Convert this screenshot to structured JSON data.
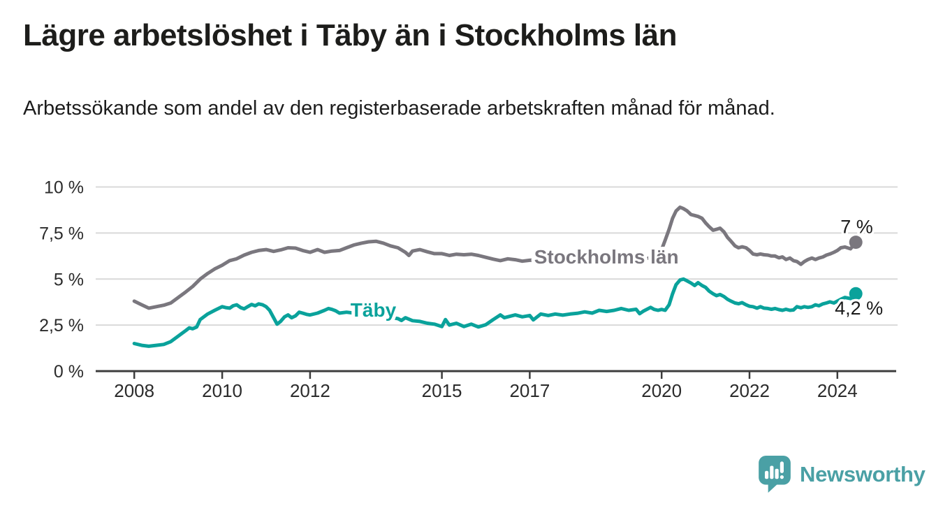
{
  "header": {
    "title": "Lägre arbetslöshet i Täby än i Stockholms län",
    "subtitle": "Arbetssökande som andel av den registerbaserade arbetskraften månad för månad."
  },
  "chart_data": {
    "type": "line",
    "title": "Lägre arbetslöshet i Täby än i Stockholms län",
    "subtitle": "Arbetssökande som andel av den registerbaserade arbetskraften månad för månad.",
    "unit": "%",
    "grid": true,
    "legend_position": "inline-labels-on-lines",
    "xlim": [
      2007.09,
      2025.37
    ],
    "ylim": [
      0,
      10
    ],
    "colors": {
      "grid": "#d9d9d9",
      "axis": "#3d3d3d",
      "tick_label": "#2b2b2b",
      "annotation": "#1a1a1a",
      "background": "#ffffff"
    },
    "y_ticks": [
      {
        "value": 0,
        "label": "0 %"
      },
      {
        "value": 2.5,
        "label": "2,5 %"
      },
      {
        "value": 5,
        "label": "5 %"
      },
      {
        "value": 7.5,
        "label": "7,5 %"
      },
      {
        "value": 10,
        "label": "10 %"
      }
    ],
    "x_ticks": [
      {
        "value": 2008,
        "label": "2008"
      },
      {
        "value": 2010,
        "label": "2010"
      },
      {
        "value": 2012,
        "label": "2012"
      },
      {
        "value": 2015,
        "label": "2015"
      },
      {
        "value": 2017,
        "label": "2017"
      },
      {
        "value": 2020,
        "label": "2020"
      },
      {
        "value": 2022,
        "label": "2022"
      },
      {
        "value": 2024,
        "label": "2024"
      }
    ],
    "series": [
      {
        "name": "Stockholms län",
        "color": "#7a777e",
        "line_width": 5,
        "end_dot": true,
        "end_value": 7.0,
        "inline_label": {
          "text": "Stockholms län",
          "x": 2017.1,
          "y": 5.84
        },
        "end_annotation": {
          "text": "7 %",
          "x": 2024.81,
          "y": 7.5
        },
        "points": [
          [
            2008.0,
            3.8
          ],
          [
            2008.17,
            3.6
          ],
          [
            2008.33,
            3.42
          ],
          [
            2008.5,
            3.5
          ],
          [
            2008.67,
            3.58
          ],
          [
            2008.83,
            3.7
          ],
          [
            2009.0,
            4.0
          ],
          [
            2009.17,
            4.3
          ],
          [
            2009.33,
            4.6
          ],
          [
            2009.5,
            5.0
          ],
          [
            2009.67,
            5.3
          ],
          [
            2009.83,
            5.55
          ],
          [
            2010.0,
            5.75
          ],
          [
            2010.17,
            6.0
          ],
          [
            2010.33,
            6.1
          ],
          [
            2010.5,
            6.3
          ],
          [
            2010.67,
            6.45
          ],
          [
            2010.83,
            6.55
          ],
          [
            2011.0,
            6.6
          ],
          [
            2011.17,
            6.5
          ],
          [
            2011.33,
            6.58
          ],
          [
            2011.5,
            6.7
          ],
          [
            2011.67,
            6.68
          ],
          [
            2011.83,
            6.55
          ],
          [
            2012.0,
            6.45
          ],
          [
            2012.17,
            6.6
          ],
          [
            2012.33,
            6.45
          ],
          [
            2012.5,
            6.52
          ],
          [
            2012.67,
            6.55
          ],
          [
            2012.83,
            6.7
          ],
          [
            2013.0,
            6.85
          ],
          [
            2013.17,
            6.95
          ],
          [
            2013.33,
            7.02
          ],
          [
            2013.5,
            7.05
          ],
          [
            2013.67,
            6.95
          ],
          [
            2013.83,
            6.8
          ],
          [
            2014.0,
            6.7
          ],
          [
            2014.17,
            6.45
          ],
          [
            2014.25,
            6.28
          ],
          [
            2014.33,
            6.52
          ],
          [
            2014.5,
            6.6
          ],
          [
            2014.67,
            6.48
          ],
          [
            2014.83,
            6.38
          ],
          [
            2015.0,
            6.38
          ],
          [
            2015.17,
            6.28
          ],
          [
            2015.33,
            6.35
          ],
          [
            2015.5,
            6.32
          ],
          [
            2015.67,
            6.35
          ],
          [
            2015.83,
            6.28
          ],
          [
            2016.0,
            6.18
          ],
          [
            2016.17,
            6.08
          ],
          [
            2016.33,
            6.0
          ],
          [
            2016.5,
            6.1
          ],
          [
            2016.67,
            6.05
          ],
          [
            2016.83,
            5.97
          ],
          [
            2017.0,
            6.02
          ],
          [
            2017.25,
            6.06
          ],
          [
            2017.5,
            6.1
          ],
          [
            2017.75,
            6.0
          ],
          [
            2018.0,
            5.95
          ],
          [
            2018.25,
            6.0
          ],
          [
            2018.5,
            5.92
          ],
          [
            2018.75,
            5.95
          ],
          [
            2019.0,
            6.0
          ],
          [
            2019.25,
            6.02
          ],
          [
            2019.5,
            6.06
          ],
          [
            2019.75,
            6.15
          ],
          [
            2019.9,
            6.3
          ],
          [
            2020.0,
            6.6
          ],
          [
            2020.08,
            7.1
          ],
          [
            2020.17,
            7.7
          ],
          [
            2020.25,
            8.3
          ],
          [
            2020.33,
            8.7
          ],
          [
            2020.42,
            8.9
          ],
          [
            2020.5,
            8.82
          ],
          [
            2020.58,
            8.7
          ],
          [
            2020.67,
            8.5
          ],
          [
            2020.75,
            8.45
          ],
          [
            2020.83,
            8.4
          ],
          [
            2020.92,
            8.3
          ],
          [
            2021.0,
            8.05
          ],
          [
            2021.08,
            7.85
          ],
          [
            2021.17,
            7.65
          ],
          [
            2021.25,
            7.7
          ],
          [
            2021.33,
            7.76
          ],
          [
            2021.42,
            7.56
          ],
          [
            2021.5,
            7.26
          ],
          [
            2021.58,
            7.05
          ],
          [
            2021.67,
            6.8
          ],
          [
            2021.75,
            6.7
          ],
          [
            2021.83,
            6.75
          ],
          [
            2021.92,
            6.7
          ],
          [
            2022.0,
            6.55
          ],
          [
            2022.08,
            6.36
          ],
          [
            2022.17,
            6.32
          ],
          [
            2022.25,
            6.36
          ],
          [
            2022.33,
            6.32
          ],
          [
            2022.42,
            6.3
          ],
          [
            2022.5,
            6.25
          ],
          [
            2022.58,
            6.25
          ],
          [
            2022.67,
            6.15
          ],
          [
            2022.75,
            6.2
          ],
          [
            2022.83,
            6.06
          ],
          [
            2022.92,
            6.14
          ],
          [
            2023.0,
            6.0
          ],
          [
            2023.08,
            5.95
          ],
          [
            2023.17,
            5.8
          ],
          [
            2023.25,
            5.95
          ],
          [
            2023.33,
            6.06
          ],
          [
            2023.42,
            6.14
          ],
          [
            2023.5,
            6.06
          ],
          [
            2023.58,
            6.14
          ],
          [
            2023.67,
            6.2
          ],
          [
            2023.75,
            6.3
          ],
          [
            2023.83,
            6.36
          ],
          [
            2023.92,
            6.45
          ],
          [
            2024.0,
            6.55
          ],
          [
            2024.08,
            6.7
          ],
          [
            2024.17,
            6.74
          ],
          [
            2024.3,
            6.64
          ],
          [
            2024.42,
            7.0
          ]
        ]
      },
      {
        "name": "Täby",
        "color": "#0aa29b",
        "line_width": 5,
        "end_dot": true,
        "end_value": 4.2,
        "inline_label": {
          "text": "Täby",
          "x": 2012.92,
          "y": 2.96
        },
        "end_annotation": {
          "text": "4,2 %",
          "x": 2025.04,
          "y": 3.08
        },
        "points": [
          [
            2008.0,
            1.5
          ],
          [
            2008.17,
            1.4
          ],
          [
            2008.33,
            1.35
          ],
          [
            2008.5,
            1.4
          ],
          [
            2008.67,
            1.45
          ],
          [
            2008.83,
            1.6
          ],
          [
            2009.0,
            1.9
          ],
          [
            2009.17,
            2.2
          ],
          [
            2009.25,
            2.35
          ],
          [
            2009.33,
            2.3
          ],
          [
            2009.42,
            2.4
          ],
          [
            2009.5,
            2.8
          ],
          [
            2009.67,
            3.1
          ],
          [
            2009.83,
            3.3
          ],
          [
            2010.0,
            3.5
          ],
          [
            2010.08,
            3.45
          ],
          [
            2010.17,
            3.42
          ],
          [
            2010.25,
            3.55
          ],
          [
            2010.33,
            3.6
          ],
          [
            2010.42,
            3.45
          ],
          [
            2010.5,
            3.38
          ],
          [
            2010.58,
            3.5
          ],
          [
            2010.67,
            3.62
          ],
          [
            2010.75,
            3.55
          ],
          [
            2010.83,
            3.65
          ],
          [
            2010.92,
            3.6
          ],
          [
            2011.0,
            3.5
          ],
          [
            2011.08,
            3.3
          ],
          [
            2011.17,
            2.9
          ],
          [
            2011.25,
            2.55
          ],
          [
            2011.33,
            2.7
          ],
          [
            2011.42,
            2.95
          ],
          [
            2011.5,
            3.05
          ],
          [
            2011.58,
            2.9
          ],
          [
            2011.67,
            3.0
          ],
          [
            2011.75,
            3.2
          ],
          [
            2011.83,
            3.15
          ],
          [
            2011.92,
            3.08
          ],
          [
            2012.0,
            3.05
          ],
          [
            2012.17,
            3.15
          ],
          [
            2012.33,
            3.3
          ],
          [
            2012.42,
            3.4
          ],
          [
            2012.5,
            3.35
          ],
          [
            2012.58,
            3.28
          ],
          [
            2012.67,
            3.15
          ],
          [
            2012.83,
            3.2
          ],
          [
            2013.0,
            3.15
          ],
          [
            2013.25,
            3.05
          ],
          [
            2013.5,
            3.1
          ],
          [
            2013.75,
            2.95
          ],
          [
            2014.0,
            2.85
          ],
          [
            2014.08,
            2.75
          ],
          [
            2014.17,
            2.9
          ],
          [
            2014.33,
            2.74
          ],
          [
            2014.5,
            2.7
          ],
          [
            2014.67,
            2.6
          ],
          [
            2014.83,
            2.55
          ],
          [
            2015.0,
            2.42
          ],
          [
            2015.08,
            2.8
          ],
          [
            2015.17,
            2.5
          ],
          [
            2015.33,
            2.6
          ],
          [
            2015.5,
            2.42
          ],
          [
            2015.67,
            2.55
          ],
          [
            2015.83,
            2.4
          ],
          [
            2016.0,
            2.52
          ],
          [
            2016.17,
            2.8
          ],
          [
            2016.33,
            3.05
          ],
          [
            2016.42,
            2.9
          ],
          [
            2016.5,
            2.95
          ],
          [
            2016.67,
            3.05
          ],
          [
            2016.83,
            2.95
          ],
          [
            2017.0,
            3.02
          ],
          [
            2017.08,
            2.78
          ],
          [
            2017.17,
            2.95
          ],
          [
            2017.25,
            3.1
          ],
          [
            2017.42,
            3.02
          ],
          [
            2017.58,
            3.1
          ],
          [
            2017.75,
            3.04
          ],
          [
            2017.92,
            3.1
          ],
          [
            2018.08,
            3.14
          ],
          [
            2018.25,
            3.22
          ],
          [
            2018.42,
            3.15
          ],
          [
            2018.58,
            3.3
          ],
          [
            2018.75,
            3.24
          ],
          [
            2018.92,
            3.3
          ],
          [
            2019.08,
            3.4
          ],
          [
            2019.25,
            3.3
          ],
          [
            2019.42,
            3.36
          ],
          [
            2019.5,
            3.12
          ],
          [
            2019.58,
            3.25
          ],
          [
            2019.75,
            3.46
          ],
          [
            2019.83,
            3.35
          ],
          [
            2019.92,
            3.3
          ],
          [
            2020.0,
            3.35
          ],
          [
            2020.08,
            3.3
          ],
          [
            2020.17,
            3.6
          ],
          [
            2020.25,
            4.2
          ],
          [
            2020.33,
            4.7
          ],
          [
            2020.42,
            4.95
          ],
          [
            2020.5,
            5.0
          ],
          [
            2020.58,
            4.9
          ],
          [
            2020.67,
            4.78
          ],
          [
            2020.75,
            4.65
          ],
          [
            2020.83,
            4.8
          ],
          [
            2020.92,
            4.65
          ],
          [
            2021.0,
            4.55
          ],
          [
            2021.08,
            4.35
          ],
          [
            2021.17,
            4.2
          ],
          [
            2021.25,
            4.1
          ],
          [
            2021.33,
            4.16
          ],
          [
            2021.42,
            4.05
          ],
          [
            2021.5,
            3.9
          ],
          [
            2021.58,
            3.8
          ],
          [
            2021.67,
            3.7
          ],
          [
            2021.75,
            3.66
          ],
          [
            2021.83,
            3.72
          ],
          [
            2021.92,
            3.6
          ],
          [
            2022.0,
            3.52
          ],
          [
            2022.08,
            3.5
          ],
          [
            2022.17,
            3.42
          ],
          [
            2022.25,
            3.5
          ],
          [
            2022.33,
            3.42
          ],
          [
            2022.42,
            3.4
          ],
          [
            2022.5,
            3.36
          ],
          [
            2022.58,
            3.4
          ],
          [
            2022.67,
            3.34
          ],
          [
            2022.75,
            3.3
          ],
          [
            2022.83,
            3.36
          ],
          [
            2022.92,
            3.3
          ],
          [
            2023.0,
            3.32
          ],
          [
            2023.08,
            3.5
          ],
          [
            2023.17,
            3.44
          ],
          [
            2023.25,
            3.5
          ],
          [
            2023.33,
            3.46
          ],
          [
            2023.42,
            3.5
          ],
          [
            2023.5,
            3.6
          ],
          [
            2023.58,
            3.55
          ],
          [
            2023.67,
            3.65
          ],
          [
            2023.75,
            3.7
          ],
          [
            2023.83,
            3.76
          ],
          [
            2023.92,
            3.7
          ],
          [
            2024.0,
            3.8
          ],
          [
            2024.08,
            3.9
          ],
          [
            2024.17,
            4.0
          ],
          [
            2024.3,
            3.94
          ],
          [
            2024.42,
            4.2
          ]
        ]
      }
    ]
  },
  "footer": {
    "brand": "Newsworthy",
    "brand_color": "#4aa0a5"
  }
}
